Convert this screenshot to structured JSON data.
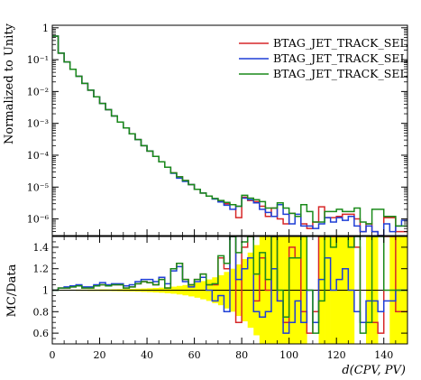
{
  "chart_data": [
    {
      "type": "line",
      "panel": "main",
      "xlabel": "",
      "ylabel": "Normalized to Unity",
      "log_y": true,
      "xlim": [
        0,
        150
      ],
      "ylim": [
        3e-07,
        1.2
      ],
      "y_ticks": [
        {
          "value": 1,
          "label": "1"
        },
        {
          "value": 0.1,
          "label": "10⁻¹"
        },
        {
          "value": 0.01,
          "label": "10⁻²"
        },
        {
          "value": 0.001,
          "label": "10⁻³"
        },
        {
          "value": 0.0001,
          "label": "10⁻⁴"
        },
        {
          "value": 1e-05,
          "label": "10⁻⁵"
        },
        {
          "value": 1e-06,
          "label": "10⁻⁶"
        }
      ],
      "bin_width": 2.5,
      "legend_position": "top-right",
      "series": [
        {
          "name": "BTAG_JET_TRACK_SEL",
          "color": "#d62728",
          "values": [
            0.55,
            0.16,
            0.085,
            0.05,
            0.03,
            0.018,
            0.011,
            0.0068,
            0.0042,
            0.0027,
            0.0017,
            0.0011,
            0.00072,
            0.00047,
            0.00031,
            0.0002,
            0.000135,
            9.2e-05,
            6.2e-05,
            4.2e-05,
            2.8e-05,
            2.1e-05,
            1.6e-05,
            1.2e-05,
            8.5e-06,
            6.5e-06,
            5.2e-06,
            4.3e-06,
            3.6e-06,
            3e-06,
            2.8e-06,
            1.1e-06,
            4.8e-06,
            3.8e-06,
            3.5e-06,
            2.5e-06,
            1.2e-06,
            2.2e-06,
            1e-06,
            7e-07,
            1.5e-06,
            1.2e-06,
            7e-07,
            5e-07,
            8e-07,
            2.4e-06,
            1.1e-06,
            1.1e-06,
            1.2e-06,
            1.4e-06,
            1.4e-06,
            1e-06,
            4e-07,
            7e-07,
            4e-07,
            3e-07,
            1.1e-06,
            1.1e-06,
            4e-07,
            4e-07
          ]
        },
        {
          "name": "BTAG_JET_TRACK_SEL",
          "color": "#1f3fd6",
          "values": [
            0.55,
            0.16,
            0.085,
            0.05,
            0.03,
            0.018,
            0.011,
            0.0068,
            0.0042,
            0.0027,
            0.0017,
            0.0011,
            0.00072,
            0.00047,
            0.00031,
            0.0002,
            0.000135,
            9.2e-05,
            6.2e-05,
            4.2e-05,
            2.7e-05,
            1.9e-05,
            1.5e-05,
            1.2e-05,
            8.5e-06,
            6.5e-06,
            5.2e-06,
            4.2e-06,
            3.4e-06,
            2.7e-06,
            2e-06,
            2.5e-06,
            4.5e-06,
            4e-06,
            3.2e-06,
            2e-06,
            1.6e-06,
            1.2e-06,
            2.8e-06,
            1.4e-06,
            7e-07,
            1.4e-06,
            6e-07,
            6e-07,
            5e-07,
            7e-07,
            1.1e-06,
            8e-07,
            1.1e-06,
            9e-07,
            1.2e-06,
            6e-07,
            4e-07,
            6e-07,
            4e-07,
            3e-07,
            7e-07,
            4e-07,
            6e-07,
            9e-07
          ]
        },
        {
          "name": "BTAG_JET_TRACK_SEL",
          "color": "#1a8a1a",
          "values": [
            0.55,
            0.16,
            0.085,
            0.05,
            0.03,
            0.018,
            0.011,
            0.0068,
            0.0042,
            0.0027,
            0.0017,
            0.0011,
            0.00072,
            0.00047,
            0.00031,
            0.0002,
            0.000135,
            9.2e-05,
            6.2e-05,
            4.2e-05,
            2.8e-05,
            2.1e-05,
            1.6e-05,
            1.2e-05,
            8.5e-06,
            6.5e-06,
            5.2e-06,
            4.4e-06,
            3.8e-06,
            3.3e-06,
            2.8e-06,
            2.5e-06,
            5.5e-06,
            4.5e-06,
            4e-06,
            3.5e-06,
            2.2e-06,
            2.2e-06,
            3.2e-06,
            2.2e-06,
            1.5e-06,
            1.2e-06,
            2.8e-06,
            1.7e-06,
            8e-07,
            8e-07,
            1.7e-06,
            1.7e-06,
            2e-06,
            1.7e-06,
            1.7e-06,
            2.2e-06,
            8e-07,
            7e-07,
            2e-06,
            2e-06,
            1.2e-06,
            1.2e-06,
            6e-07,
            6e-07
          ]
        }
      ]
    },
    {
      "type": "line",
      "panel": "ratio",
      "xlabel": "d(CPV, PV)",
      "ylabel": "MC/Data",
      "xlim": [
        0,
        150
      ],
      "ylim": [
        0.5,
        1.5
      ],
      "x_ticks": [
        0,
        20,
        40,
        60,
        80,
        100,
        120,
        140
      ],
      "y_ticks": [
        {
          "value": 0.6,
          "label": "0.6"
        },
        {
          "value": 0.8,
          "label": "0.8"
        },
        {
          "value": 1.0,
          "label": "1"
        },
        {
          "value": 1.2,
          "label": "1.2"
        },
        {
          "value": 1.4,
          "label": "1.4"
        }
      ],
      "reference_line": 1.0,
      "bin_width": 2.5,
      "uncertainty_band": {
        "color": "#ffff00",
        "halfwidth": [
          0.005,
          0.005,
          0.005,
          0.005,
          0.006,
          0.006,
          0.007,
          0.007,
          0.008,
          0.008,
          0.009,
          0.01,
          0.011,
          0.012,
          0.014,
          0.016,
          0.018,
          0.021,
          0.024,
          0.028,
          0.033,
          0.04,
          0.048,
          0.058,
          0.07,
          0.085,
          0.1,
          0.12,
          0.14,
          0.17,
          0.2,
          0.24,
          0.29,
          0.35,
          0.42,
          0.5,
          0.55,
          0.6,
          0.6,
          0.6,
          0.6,
          0.6,
          0.6,
          0.6,
          0.6,
          0.6,
          0.6,
          0.6,
          0.6,
          0.6,
          0.6,
          0.6,
          0.6,
          0.6,
          0.6,
          0.6,
          0.6,
          0.6,
          0.6,
          0.6
        ],
        "gaps": [
          43,
          44,
          51,
          52,
          55,
          56
        ]
      },
      "series": [
        {
          "name": "BTAG_JET_TRACK_SEL",
          "color": "#d62728",
          "values": [
            1.0,
            1.02,
            1.02,
            1.03,
            1.04,
            1.02,
            1.02,
            1.04,
            1.05,
            1.04,
            1.05,
            1.05,
            1.02,
            1.03,
            1.06,
            1.08,
            1.07,
            1.05,
            1.1,
            1.02,
            1.2,
            1.25,
            1.1,
            1.05,
            1.1,
            1.15,
            1.05,
            1.05,
            1.3,
            1.2,
            1.5,
            0.7,
            1.4,
            1.5,
            0.9,
            1.3,
            1.0,
            1.5,
            0.9,
            0.7,
            1.4,
            1.3,
            0.8,
            0.6,
            0.8,
            1.5,
            1.5,
            1.5,
            1.5,
            1.5,
            1.5,
            1.4,
            0.7,
            0.7,
            0.7,
            0.6,
            1.5,
            1.5,
            0.8,
            0.8
          ]
        },
        {
          "name": "BTAG_JET_TRACK_SEL",
          "color": "#1f3fd6",
          "values": [
            1.0,
            1.02,
            1.03,
            1.04,
            1.05,
            1.03,
            1.03,
            1.05,
            1.07,
            1.05,
            1.06,
            1.06,
            1.04,
            1.05,
            1.08,
            1.1,
            1.1,
            1.08,
            1.12,
            1.06,
            1.18,
            1.22,
            1.08,
            1.03,
            1.08,
            1.12,
            1.0,
            0.9,
            0.95,
            0.8,
            1.5,
            1.1,
            1.2,
            1.3,
            0.8,
            0.75,
            0.8,
            1.2,
            0.9,
            0.6,
            0.7,
            0.9,
            0.7,
            1.0,
            0.7,
            1.1,
            1.3,
            1.0,
            1.1,
            1.2,
            1.0,
            0.8,
            0.7,
            0.9,
            0.9,
            0.8,
            0.9,
            0.9,
            1.0,
            1.0
          ]
        },
        {
          "name": "BTAG_JET_TRACK_SEL",
          "color": "#1a8a1a",
          "values": [
            1.0,
            1.02,
            1.02,
            1.03,
            1.04,
            1.02,
            1.02,
            1.04,
            1.05,
            1.04,
            1.05,
            1.05,
            1.02,
            1.03,
            1.06,
            1.08,
            1.07,
            1.05,
            1.1,
            1.02,
            1.2,
            1.25,
            1.1,
            1.05,
            1.1,
            1.15,
            1.05,
            1.06,
            1.32,
            1.25,
            1.5,
            1.35,
            1.45,
            1.5,
            1.15,
            1.35,
            1.1,
            1.5,
            1.0,
            0.75,
            1.3,
            1.3,
            1.5,
            1.0,
            0.6,
            0.9,
            1.5,
            1.4,
            1.5,
            1.5,
            1.4,
            1.5,
            0.6,
            0.7,
            1.5,
            1.5,
            1.0,
            1.0,
            1.0,
            1.0
          ]
        }
      ]
    }
  ]
}
